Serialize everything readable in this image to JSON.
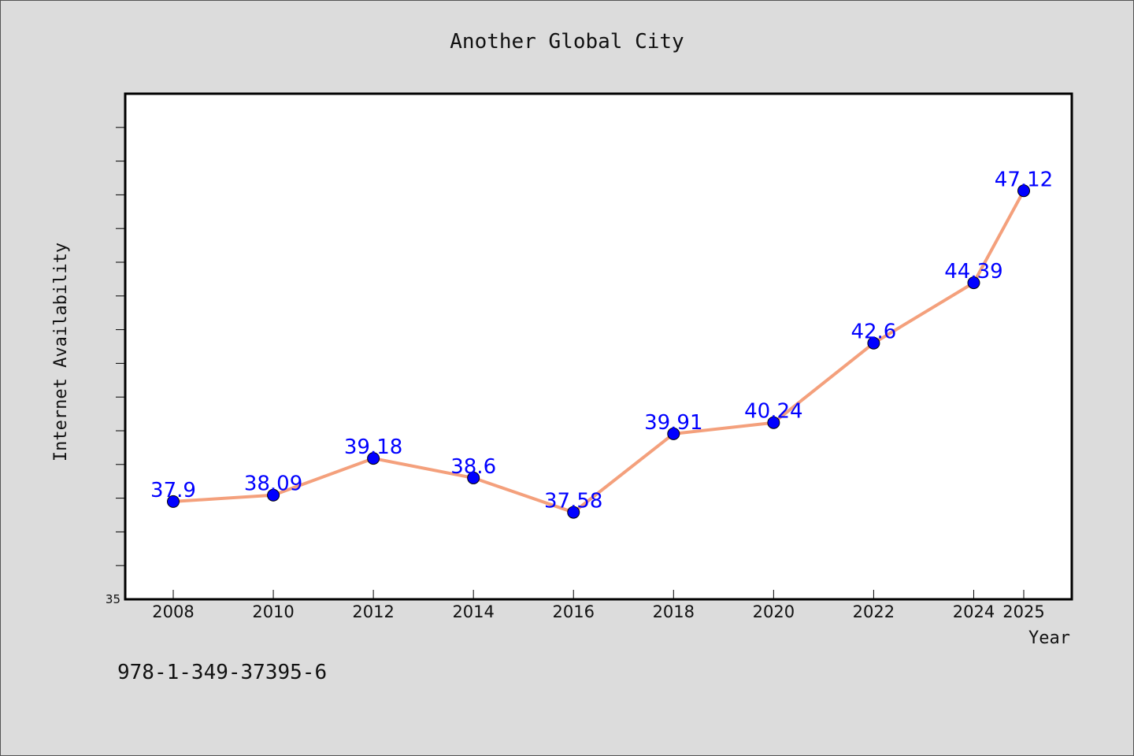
{
  "chart_data": {
    "type": "line",
    "title": "Another Global City",
    "xlabel": "Year",
    "ylabel": "Internet Availability",
    "categories": [
      "2008",
      "2010",
      "2012",
      "2014",
      "2016",
      "2018",
      "2020",
      "2022",
      "2024",
      "2025"
    ],
    "values": [
      37.9,
      38.09,
      39.18,
      38.6,
      37.58,
      39.91,
      40.24,
      42.6,
      44.39,
      47.12
    ],
    "data_labels": [
      "37.9",
      "38.09",
      "39.18",
      "38.6",
      "37.58",
      "39.91",
      "40.24",
      "42.6",
      "44.39",
      "47.12"
    ],
    "y_min_label": "35",
    "ylim": [
      35,
      50
    ],
    "grid": false,
    "line_color": "#f4a07c",
    "marker_color": "#0000ff",
    "label_color": "#0000ff"
  },
  "footer": {
    "isbn": "978-1-349-37395-6"
  }
}
